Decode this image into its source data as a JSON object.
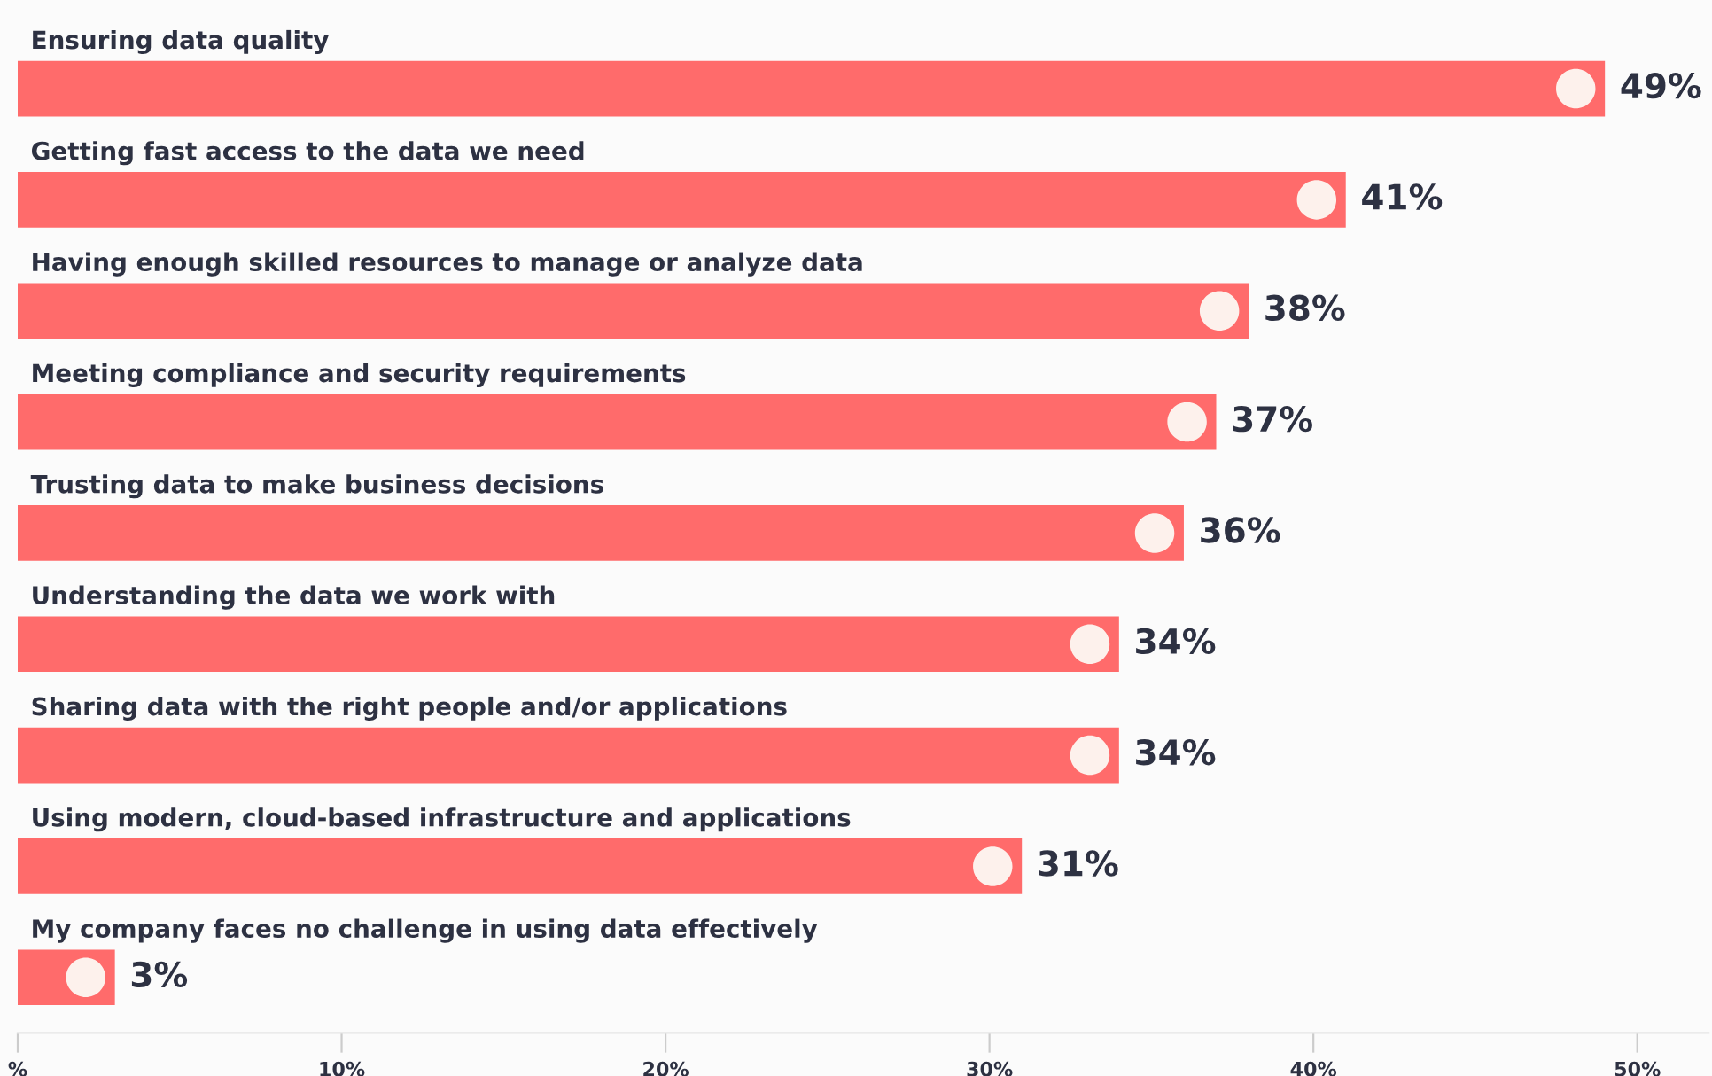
{
  "chart_data": {
    "type": "bar",
    "orientation": "horizontal",
    "categories": [
      "Ensuring data quality",
      "Getting fast access to the data we need",
      "Having enough skilled resources to manage or analyze data",
      "Meeting compliance and security requirements",
      "Trusting data to make business decisions",
      "Understanding the data we work with",
      "Sharing data with the right people and/or applications",
      "Using modern, cloud-based infrastructure and applications",
      "My company faces no challenge in using data effectively"
    ],
    "values": [
      49,
      41,
      38,
      37,
      36,
      34,
      34,
      31,
      3
    ],
    "value_labels": [
      "49%",
      "41%",
      "38%",
      "37%",
      "36%",
      "34%",
      "34%",
      "31%",
      "3%"
    ],
    "color": "#ff6b6b",
    "xlim": [
      0,
      52.2
    ],
    "xticks": [
      {
        "value": 0,
        "label": "%"
      },
      {
        "value": 10,
        "label": "10%"
      },
      {
        "value": 20,
        "label": "20%"
      },
      {
        "value": 30,
        "label": "30%"
      },
      {
        "value": 40,
        "label": "40%"
      },
      {
        "value": 50,
        "label": "50%"
      }
    ],
    "tick_labels": "x",
    "grid": false,
    "legend": false
  }
}
